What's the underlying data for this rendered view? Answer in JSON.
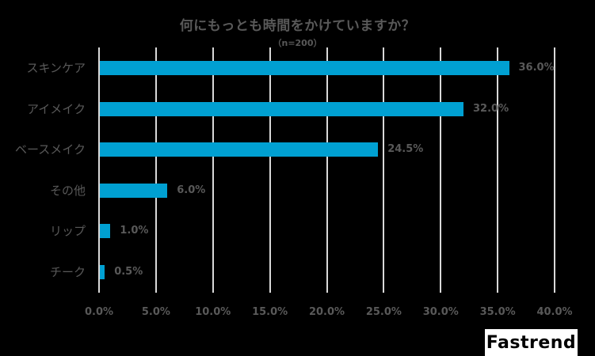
{
  "chart_data": {
    "type": "bar",
    "orientation": "horizontal",
    "title": "何にもっとも時間をかけていますか？",
    "subtitle": "（n=200）",
    "categories": [
      "スキンケア",
      "アイメイク",
      "ベースメイク",
      "その他",
      "リップ",
      "チーク"
    ],
    "values": [
      36.0,
      32.0,
      24.5,
      6.0,
      1.0,
      0.5
    ],
    "value_labels": [
      "36.0%",
      "32.0%",
      "24.5%",
      "6.0%",
      "1.0%",
      "0.5%"
    ],
    "xlabel": "",
    "ylabel": "",
    "xlim": [
      0,
      40
    ],
    "x_ticks": [
      "0.0%",
      "5.0%",
      "10.0%",
      "15.0%",
      "20.0%",
      "25.0%",
      "30.0%",
      "35.0%",
      "40.0%"
    ],
    "grid": true,
    "legend": null,
    "bar_color": "#00A0D2"
  },
  "branding": {
    "logo_text": "Fastrend"
  }
}
